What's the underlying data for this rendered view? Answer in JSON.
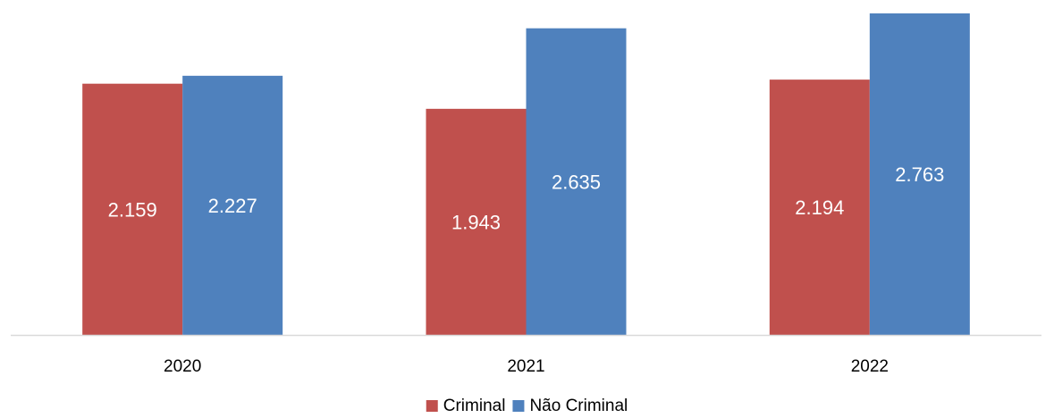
{
  "chart_data": {
    "type": "bar",
    "categories": [
      "2020",
      "2021",
      "2022"
    ],
    "series": [
      {
        "name": "Criminal",
        "values": [
          2159,
          1943,
          2194
        ],
        "labels": [
          "2.159",
          "1.943",
          "2.194"
        ],
        "color": "#C0504D"
      },
      {
        "name": "Não Criminal",
        "values": [
          2227,
          2635,
          2763
        ],
        "labels": [
          "2.227",
          "2.635",
          "2.763"
        ],
        "color": "#4F81BD"
      }
    ],
    "title": "",
    "xlabel": "",
    "ylabel": "",
    "ylim": [
      0,
      2900
    ],
    "grid": false,
    "y_axis_visible": false,
    "legend": "bottom-center",
    "axis_color": "#D9D9D9"
  }
}
